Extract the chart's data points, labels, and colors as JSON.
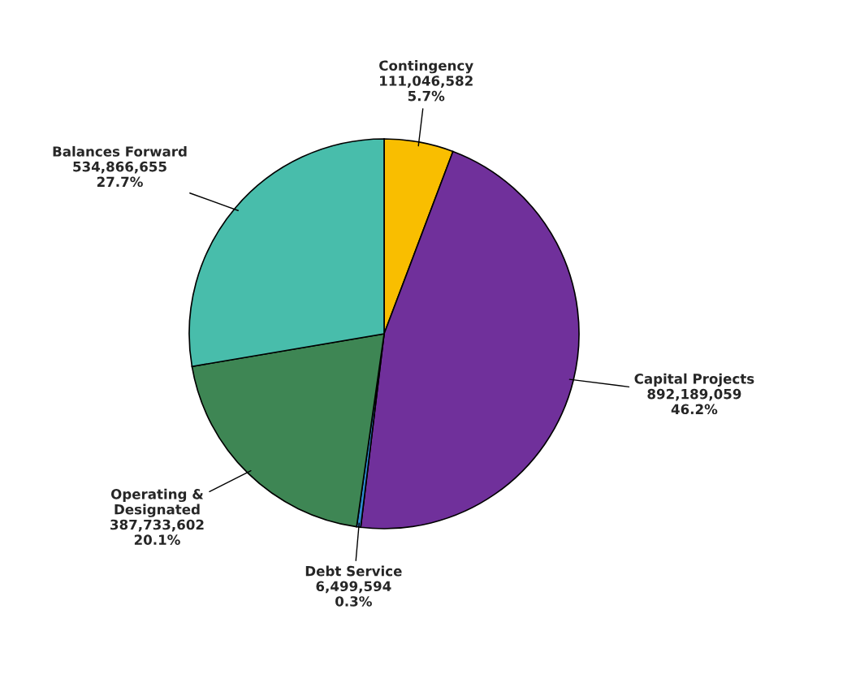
{
  "chart_data": {
    "type": "pie",
    "categories": [
      "Contingency",
      "Capital Projects",
      "Debt Service",
      "Operating &\nDesignated",
      "Balances Forward"
    ],
    "values": [
      111046582,
      892189059,
      6499594,
      387733602,
      534866655
    ],
    "value_labels": [
      "111,046,582\n5.7%",
      "892,189,059\n46.2%",
      "6,499,594\n0.3%",
      "387,733,602\n20.1%",
      "534,866,655\n27.7%"
    ],
    "colors": [
      "#f9be00",
      "#70309b",
      "#2e88cf",
      "#3e8654",
      "#48bdab"
    ],
    "legend": false
  }
}
